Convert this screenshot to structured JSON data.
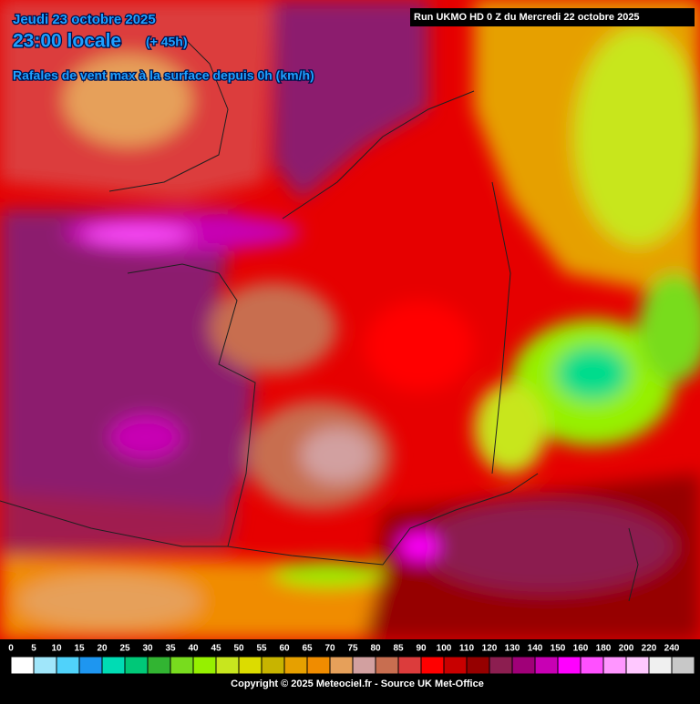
{
  "header": {
    "date": "Jeudi 23 octobre 2025",
    "time": "23:00 locale",
    "lead": "(+ 45h)",
    "parameter": "Rafales de vent max à la surface depuis 0h (km/h)",
    "run": "Run UKMO HD 0 Z du Mercredi 22 octobre 2025"
  },
  "legend": {
    "values": [
      0,
      5,
      10,
      15,
      20,
      25,
      30,
      35,
      40,
      45,
      50,
      55,
      60,
      65,
      70,
      75,
      80,
      85,
      90,
      100,
      110,
      120,
      130,
      140,
      150,
      160,
      180,
      200,
      220,
      240
    ],
    "colors": [
      "#ffffff",
      "#a0e6fa",
      "#50d2fa",
      "#1e96f0",
      "#00dcb4",
      "#00c878",
      "#32b432",
      "#78dc1e",
      "#96f000",
      "#c8e61e",
      "#dcdc00",
      "#c8b400",
      "#e6a000",
      "#f08c00",
      "#e6a05a",
      "#d2a0a0",
      "#c86e50",
      "#dc3c3c",
      "#ff0000",
      "#c80000",
      "#960000",
      "#8c1e50",
      "#a00078",
      "#c800b4",
      "#ff00ff",
      "#ff50ff",
      "#ff96ff",
      "#ffc8ff",
      "#f0f0f0",
      "#c8c8c8"
    ]
  },
  "footer": {
    "copyright": "Copyright © 2025 Meteociel.fr - Source UK Met-Office"
  }
}
